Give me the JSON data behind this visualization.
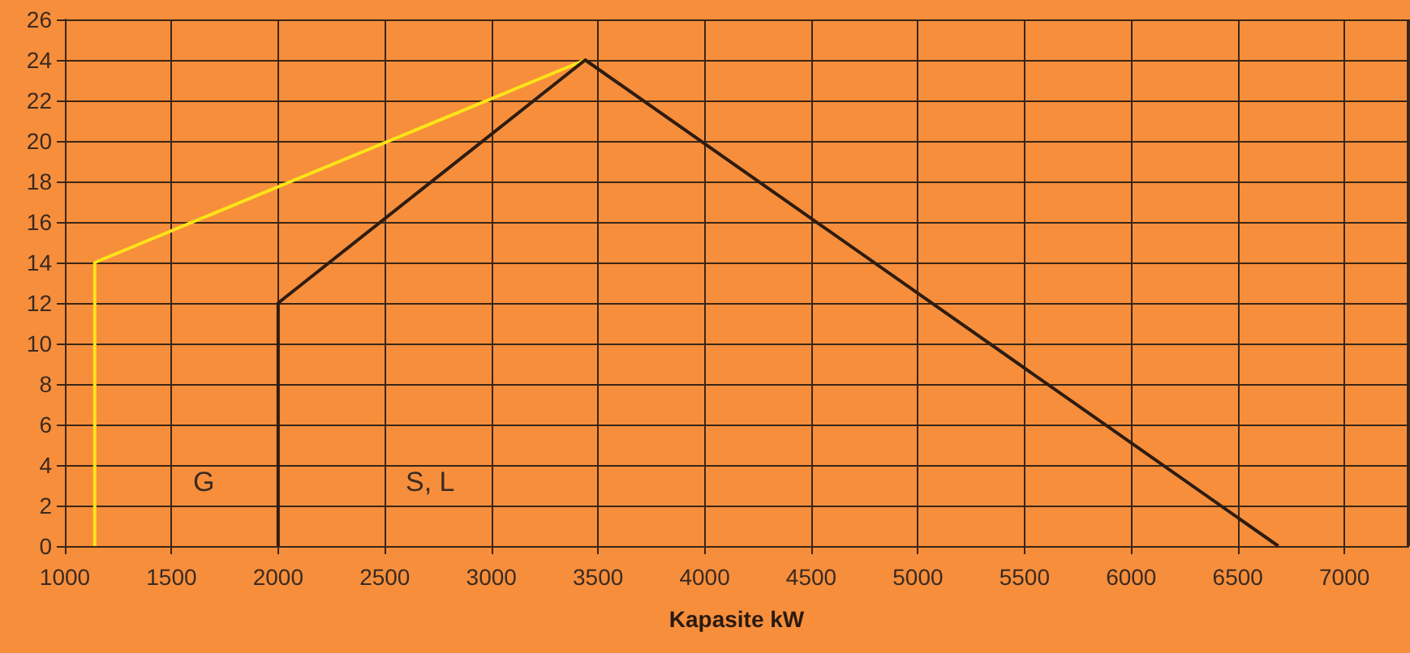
{
  "chart_data": {
    "type": "line",
    "xlabel": "Kapasite kW",
    "xlim": [
      1000,
      7300
    ],
    "xticks": [
      1000,
      1500,
      2000,
      2500,
      3000,
      3500,
      4000,
      4500,
      5000,
      5500,
      6000,
      6500,
      7000
    ],
    "ylim": [
      0,
      26
    ],
    "yticks": [
      0,
      2,
      4,
      6,
      8,
      10,
      12,
      14,
      16,
      18,
      20,
      22,
      24,
      26
    ],
    "series": [
      {
        "color": "#ffe418",
        "x": [
          1140,
          1140,
          3440
        ],
        "values": [
          0,
          14,
          24
        ]
      },
      {
        "color": "#2e1c10",
        "x": [
          2000,
          2000,
          3440,
          6690
        ],
        "values": [
          0,
          12,
          24,
          0
        ]
      }
    ],
    "annotations": [
      "G",
      "S, L"
    ],
    "grid": true,
    "marker": "none",
    "line_style": "solid"
  }
}
